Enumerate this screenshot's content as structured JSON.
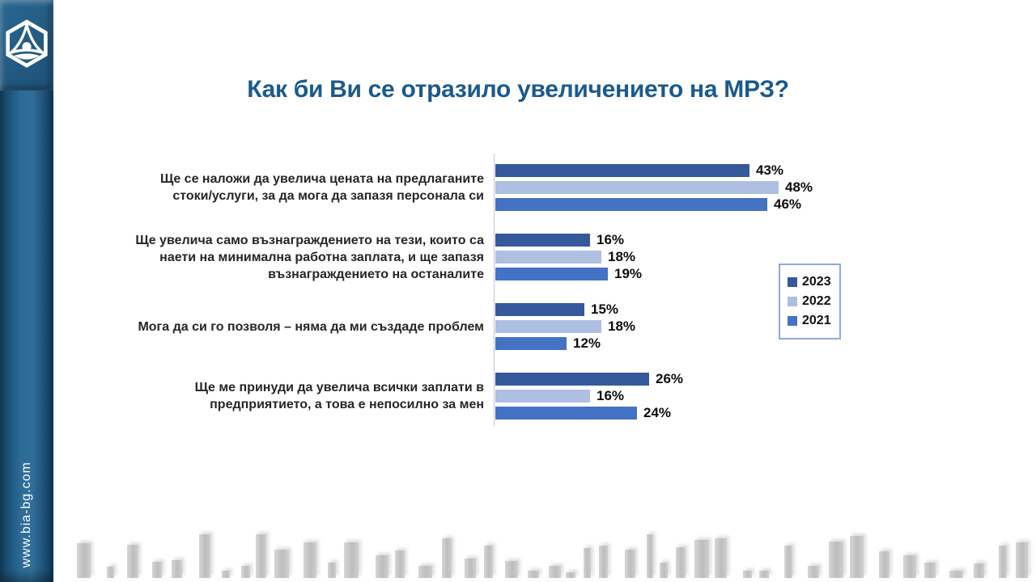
{
  "slide": {
    "title": "Как би Ви се отразило увеличението на МРЗ?",
    "sidebar_url": "www.bia-bg.com",
    "colors": {
      "title_blue": "#1A5A8E",
      "sidebar_blue": "#2C6B96",
      "axis_gray": "#C6C6C6",
      "legend_border": "#8EAADB",
      "skyline_gray": "#C9C9C9"
    }
  },
  "chart_data": {
    "type": "bar",
    "orientation": "horizontal",
    "title": "Как би Ви се отразило увеличението на МРЗ?",
    "value_suffix": "%",
    "xlim": [
      0,
      55
    ],
    "grid": false,
    "legend_position": "right",
    "legend_entries": [
      "2023",
      "2022",
      "2021"
    ],
    "categories": [
      "Ще се наложи да увелича цената на предлаганите стоки/услуги, за да мога да запазя персонала си",
      "Ще увелича само възнаграждението на тези, които са наети на минимална работна заплата, и ще запазя възнаграждението на останалите",
      "Мога да си го позволя – няма да ми създаде проблем",
      "Ще ме принуди да увелича всички заплати в предприятието, а това е непосилно за мен"
    ],
    "series": [
      {
        "name": "2023",
        "color": "#35599A",
        "values": [
          43,
          16,
          15,
          26
        ]
      },
      {
        "name": "2022",
        "color": "#AEBFE2",
        "values": [
          48,
          18,
          18,
          16
        ]
      },
      {
        "name": "2021",
        "color": "#4472C4",
        "values": [
          46,
          19,
          12,
          24
        ]
      }
    ]
  }
}
